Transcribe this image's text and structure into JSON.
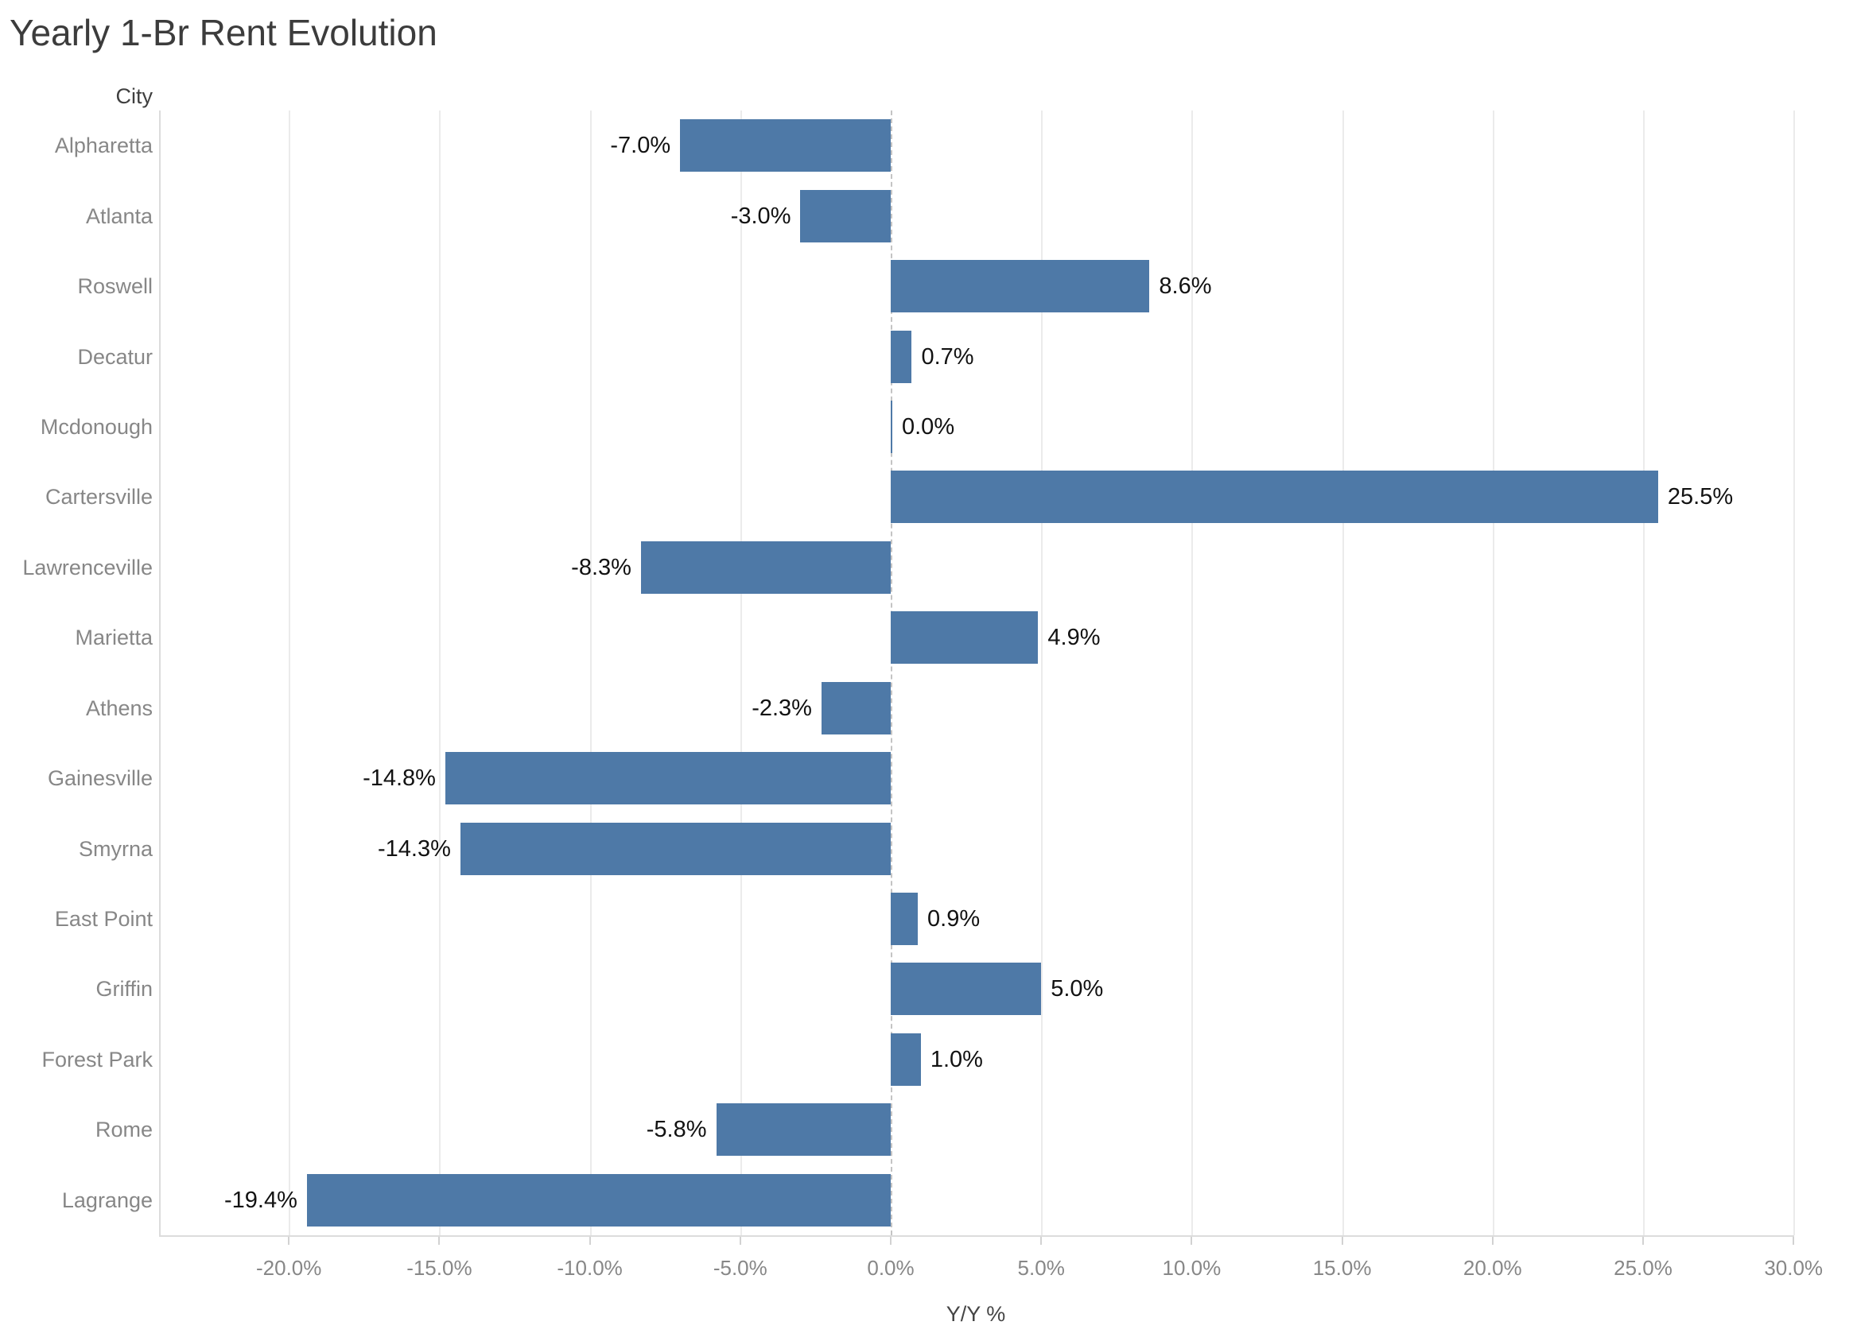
{
  "title": "Yearly 1-Br Rent Evolution",
  "colors": {
    "bar": "#4e79a7",
    "gridline": "#ebebeb",
    "zero_line": "#c4c4c4",
    "value_label": "#121212",
    "category_label": "#878787",
    "title_text": "#3c3c3c"
  },
  "chart_data": {
    "type": "bar",
    "orientation": "horizontal",
    "title": "Yearly 1-Br Rent Evolution",
    "row_header": "City",
    "categories": [
      "Alpharetta",
      "Atlanta",
      "Roswell",
      "Decatur",
      "Mcdonough",
      "Cartersville",
      "Lawrenceville",
      "Marietta",
      "Athens",
      "Gainesville",
      "Smyrna",
      "East Point",
      "Griffin",
      "Forest Park",
      "Rome",
      "Lagrange"
    ],
    "values": [
      -7.0,
      -3.0,
      8.6,
      0.7,
      0.0,
      25.5,
      -8.3,
      4.9,
      -2.3,
      -14.8,
      -14.3,
      0.9,
      5.0,
      1.0,
      -5.8,
      -19.4
    ],
    "labels": [
      "-7.0%",
      "-3.0%",
      "8.6%",
      "0.7%",
      "0.0%",
      "25.5%",
      "-8.3%",
      "4.9%",
      "-2.3%",
      "-14.8%",
      "-14.3%",
      "0.9%",
      "5.0%",
      "1.0%",
      "-5.8%",
      "-19.4%"
    ],
    "xlabel": "Y/Y %",
    "ylabel": "City",
    "x_ticks": [
      -20,
      -15,
      -10,
      -5,
      0,
      5,
      10,
      15,
      20,
      25,
      30
    ],
    "x_tick_labels": [
      "-20.0%",
      "-15.0%",
      "-10.0%",
      "-5.0%",
      "0.0%",
      "5.0%",
      "10.0%",
      "15.0%",
      "20.0%",
      "25.0%",
      "30.0%"
    ],
    "xlim": [
      -24.3,
      30.5
    ],
    "grid": true,
    "zero_line": "dashed",
    "bar_color": "#4e79a7",
    "legend": "none"
  }
}
